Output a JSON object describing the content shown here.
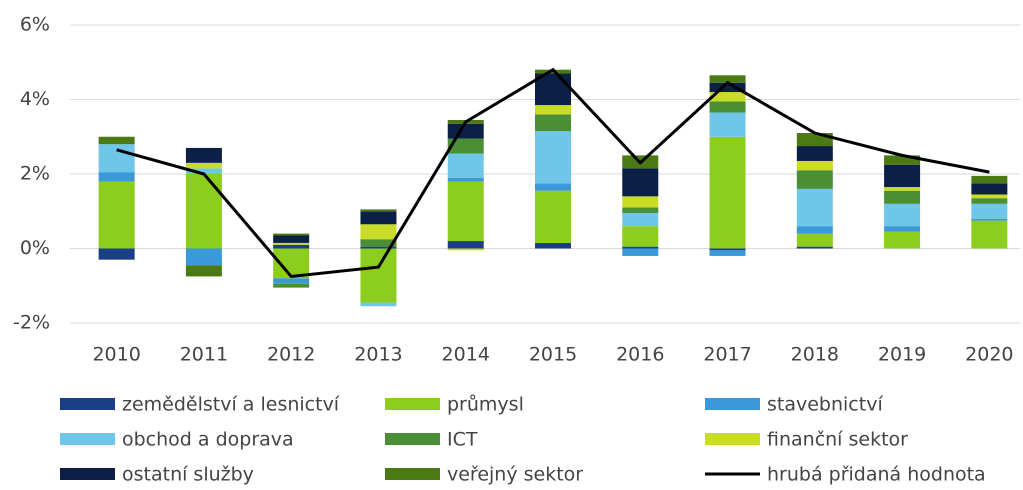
{
  "chart_data": {
    "type": "bar",
    "categories": [
      "2010",
      "2011",
      "2012",
      "2013",
      "2014",
      "2015",
      "2016",
      "2017",
      "2018",
      "2019",
      "2020"
    ],
    "ylim": [
      -2,
      6
    ],
    "yticks": [
      {
        "value": -2,
        "label": "-2%"
      },
      {
        "value": 0,
        "label": "0%"
      },
      {
        "value": 2,
        "label": "2%"
      },
      {
        "value": 4,
        "label": "4%"
      },
      {
        "value": 6,
        "label": "6%"
      }
    ],
    "grid": true,
    "series": [
      {
        "name": "zemědělství a lesnictví",
        "color": "#1b3f86",
        "values": [
          -0.3,
          0,
          0.1,
          0.05,
          0.2,
          0.15,
          0.05,
          -0.05,
          0.05,
          0,
          0
        ]
      },
      {
        "name": "průmysl",
        "color": "#8ccd1e",
        "values": [
          1.8,
          2.0,
          -0.8,
          -1.45,
          1.6,
          1.4,
          0.55,
          3.0,
          0.35,
          0.45,
          0.75
        ]
      },
      {
        "name": "stavebnictví",
        "color": "#3a9ad9",
        "values": [
          0.25,
          -0.45,
          -0.15,
          0,
          0.1,
          0.2,
          -0.2,
          -0.15,
          0.2,
          0.15,
          0.05
        ]
      },
      {
        "name": "obchod a doprava",
        "color": "#70c6e8",
        "values": [
          0.75,
          0.15,
          0,
          -0.1,
          0.65,
          1.4,
          0.35,
          0.65,
          1.0,
          0.6,
          0.4
        ]
      },
      {
        "name": "ICT",
        "color": "#4a8f35",
        "values": [
          0,
          0,
          -0.1,
          0.2,
          0.4,
          0.45,
          0.15,
          0.3,
          0.5,
          0.35,
          0.15
        ]
      },
      {
        "name": "finanční sektor",
        "color": "#c8dc28",
        "values": [
          0,
          0.15,
          0.05,
          0.4,
          -0.05,
          0.25,
          0.3,
          0.25,
          0.25,
          0.1,
          0.1
        ]
      },
      {
        "name": "ostatní služby",
        "color": "#0c1f45",
        "values": [
          0,
          0.4,
          0.2,
          0.35,
          0.4,
          0.85,
          0.75,
          0.25,
          0.4,
          0.6,
          0.3
        ]
      },
      {
        "name": "veřejný sektor",
        "color": "#4b7a14",
        "values": [
          0.2,
          -0.3,
          0.05,
          0.05,
          0.1,
          0.1,
          0.35,
          0.2,
          0.35,
          0.25,
          0.2
        ]
      },
      {
        "name": "hrubá přidaná hodnota",
        "color": "#000000",
        "type": "line",
        "values": [
          2.65,
          2.0,
          -0.75,
          -0.5,
          3.4,
          4.8,
          2.3,
          4.45,
          3.1,
          2.5,
          2.05
        ]
      }
    ]
  }
}
